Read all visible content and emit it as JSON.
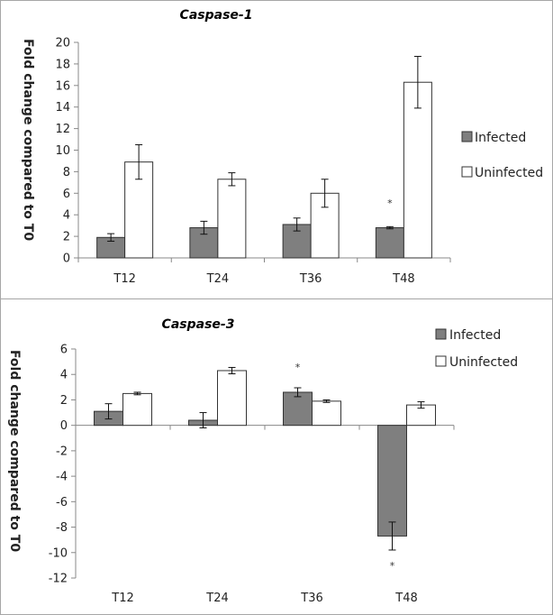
{
  "chart_data": [
    {
      "type": "bar",
      "title": "Caspase-1",
      "ylabel": "Fold change compared to T0",
      "xlabel": "",
      "categories": [
        "T12",
        "T24",
        "T36",
        "T48"
      ],
      "ylim": [
        0,
        20
      ],
      "yticks": [
        0,
        2,
        4,
        6,
        8,
        10,
        12,
        14,
        16,
        18,
        20
      ],
      "legend_position": "right",
      "series": [
        {
          "name": "Infected",
          "color": "#7f7f7f",
          "values": [
            1.9,
            2.8,
            3.1,
            2.8
          ],
          "errors": [
            0.35,
            0.6,
            0.6,
            0.1
          ]
        },
        {
          "name": "Uninfected",
          "color": "#ffffff",
          "values": [
            8.9,
            7.3,
            6.0,
            16.3
          ],
          "errors": [
            1.6,
            0.6,
            1.3,
            2.4
          ]
        }
      ],
      "annotations": [
        {
          "text": "*",
          "category": "T48",
          "series": "Infected",
          "y": 5.1
        }
      ]
    },
    {
      "type": "bar",
      "title": "Caspase-3",
      "ylabel": "Fold change compared to T0",
      "xlabel": "",
      "categories": [
        "T12",
        "T24",
        "T36",
        "T48"
      ],
      "ylim": [
        -12,
        6
      ],
      "yticks": [
        -12,
        -10,
        -8,
        -6,
        -4,
        -2,
        0,
        2,
        4,
        6
      ],
      "legend_position": "top-right",
      "series": [
        {
          "name": "Infected",
          "color": "#7f7f7f",
          "values": [
            1.1,
            0.4,
            2.6,
            -8.7
          ],
          "errors": [
            0.6,
            0.6,
            0.35,
            1.1
          ]
        },
        {
          "name": "Uninfected",
          "color": "#ffffff",
          "values": [
            2.5,
            4.3,
            1.9,
            1.6
          ],
          "errors": [
            0.1,
            0.25,
            0.1,
            0.25
          ]
        }
      ],
      "annotations": [
        {
          "text": "*",
          "category": "T36",
          "series": "Infected",
          "y": 4.6
        },
        {
          "text": "*",
          "category": "T48",
          "series": "Infected",
          "y": -11.0
        }
      ]
    }
  ]
}
